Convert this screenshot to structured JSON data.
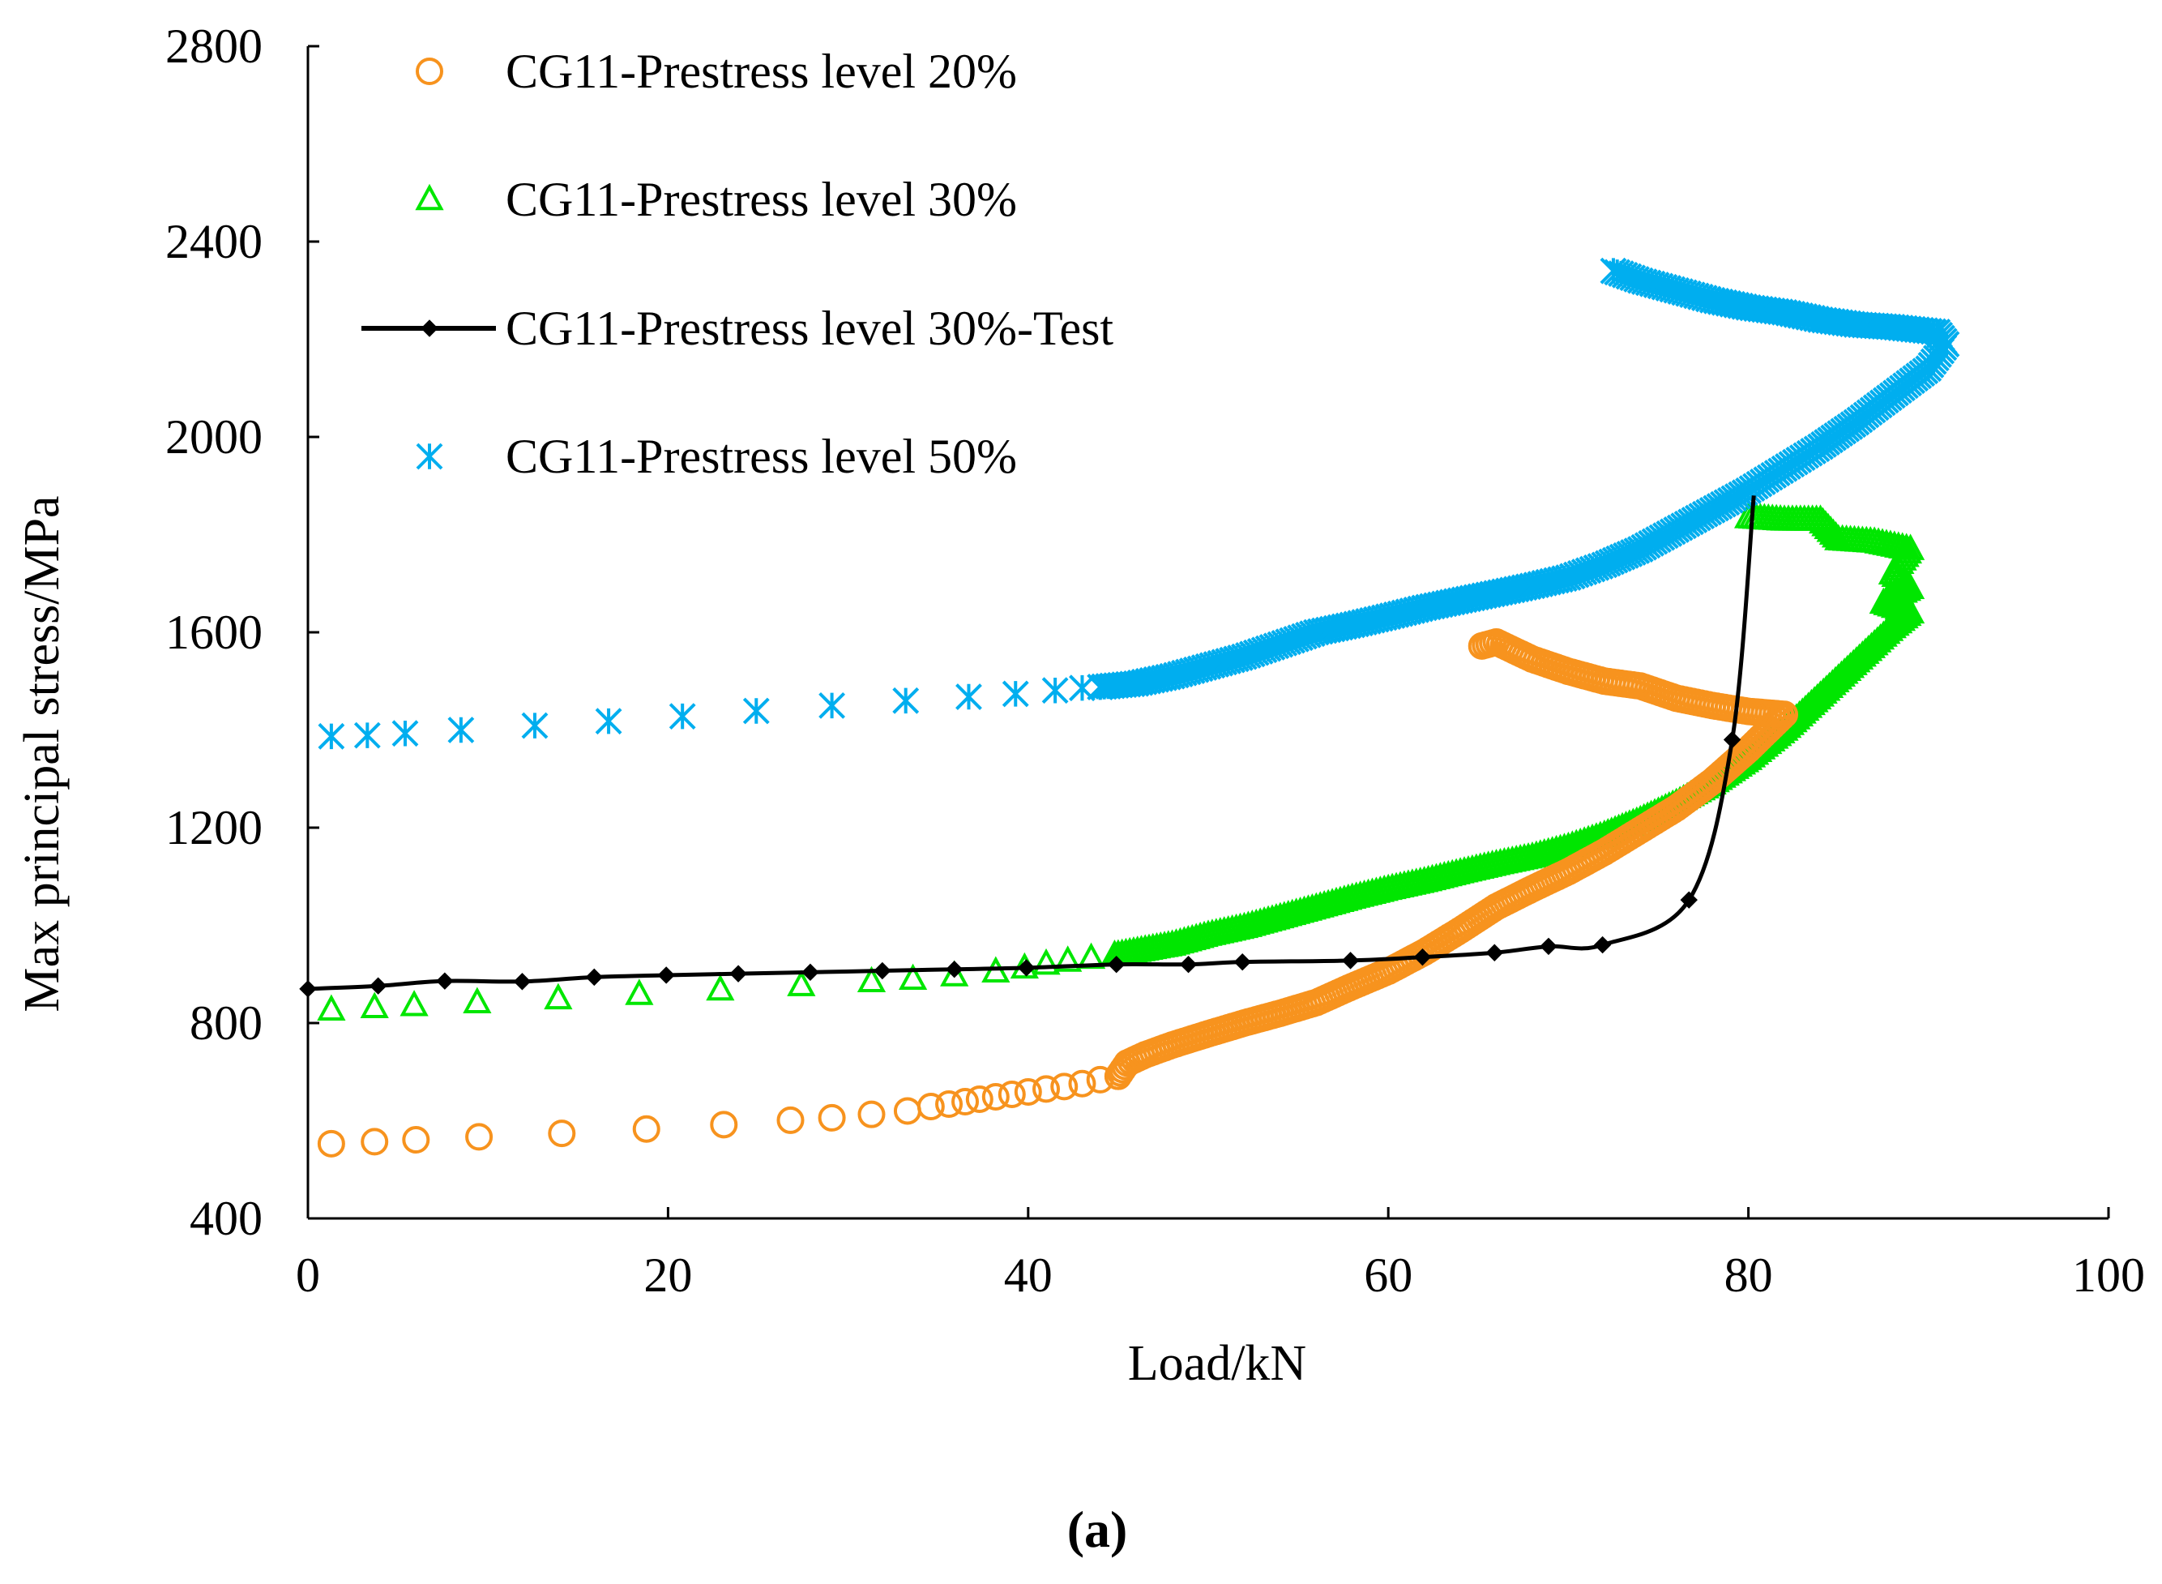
{
  "caption": "(a)",
  "colors": {
    "orange": "#F7931E",
    "green": "#00E600",
    "black": "#000000",
    "blue": "#00AEEF"
  },
  "chart_data": {
    "type": "scatter",
    "xlabel": "Load/kN",
    "ylabel": "Max principal stress/MPa",
    "xlim": [
      0,
      100
    ],
    "ylim": [
      400,
      2800
    ],
    "xticks": [
      "0",
      "20",
      "40",
      "60",
      "80",
      "100"
    ],
    "yticks": [
      "400",
      "800",
      "1200",
      "1600",
      "2000",
      "2400",
      "2800"
    ],
    "legend_position": "top-left",
    "series": [
      {
        "name": "CG11-Prestress level 20%",
        "marker": "circle",
        "color": "#F7931E",
        "line": false,
        "sparse_points": [
          [
            1.3,
            553
          ],
          [
            3.7,
            557
          ],
          [
            6.0,
            561
          ],
          [
            9.5,
            567
          ],
          [
            14.1,
            574
          ],
          [
            18.8,
            583
          ],
          [
            23.1,
            592
          ],
          [
            26.8,
            601
          ],
          [
            29.1,
            606
          ],
          [
            31.3,
            613
          ],
          [
            33.3,
            620
          ],
          [
            34.6,
            629
          ],
          [
            35.6,
            634
          ],
          [
            36.5,
            639
          ],
          [
            37.3,
            644
          ],
          [
            38.2,
            649
          ],
          [
            39.1,
            654
          ],
          [
            40.0,
            659
          ],
          [
            41.0,
            665
          ],
          [
            42.0,
            670
          ],
          [
            43.0,
            676
          ],
          [
            44.0,
            684
          ],
          [
            45.0,
            691
          ]
        ],
        "dense_path": [
          [
            45,
            691
          ],
          [
            45.5,
            718
          ],
          [
            46.5,
            735
          ],
          [
            48,
            755
          ],
          [
            50,
            778
          ],
          [
            52,
            800
          ],
          [
            54,
            820
          ],
          [
            56,
            842
          ],
          [
            58,
            875
          ],
          [
            60,
            906
          ],
          [
            62,
            945
          ],
          [
            64,
            990
          ],
          [
            66,
            1038
          ],
          [
            68,
            1075
          ],
          [
            70,
            1110
          ],
          [
            72,
            1150
          ],
          [
            74,
            1195
          ],
          [
            76,
            1240
          ],
          [
            78,
            1295
          ],
          [
            80,
            1360
          ],
          [
            82,
            1432
          ],
          [
            80,
            1438
          ],
          [
            78,
            1450
          ],
          [
            76,
            1465
          ],
          [
            74,
            1490
          ],
          [
            72,
            1500
          ],
          [
            70,
            1520
          ],
          [
            68,
            1545
          ],
          [
            66,
            1580
          ],
          [
            65.2,
            1572
          ]
        ]
      },
      {
        "name": "CG11-Prestress level 30%",
        "marker": "triangle",
        "color": "#00E600",
        "line": false,
        "sparse_points": [
          [
            1.3,
            827
          ],
          [
            3.7,
            832
          ],
          [
            5.9,
            836
          ],
          [
            9.4,
            842
          ],
          [
            13.9,
            850
          ],
          [
            18.4,
            859
          ],
          [
            22.9,
            868
          ],
          [
            27.4,
            877
          ],
          [
            31.3,
            885
          ],
          [
            33.6,
            890
          ],
          [
            35.9,
            897
          ],
          [
            38.2,
            905
          ],
          [
            39.8,
            913
          ],
          [
            41.0,
            921
          ],
          [
            42.2,
            927
          ],
          [
            43.5,
            933
          ],
          [
            44.8,
            939
          ]
        ],
        "dense_path": [
          [
            45,
            940
          ],
          [
            48,
            960
          ],
          [
            50,
            980
          ],
          [
            52,
            996
          ],
          [
            54,
            1016
          ],
          [
            56,
            1036
          ],
          [
            58,
            1056
          ],
          [
            60,
            1074
          ],
          [
            62,
            1090
          ],
          [
            64,
            1108
          ],
          [
            66,
            1125
          ],
          [
            68,
            1140
          ],
          [
            70,
            1160
          ],
          [
            72,
            1185
          ],
          [
            74,
            1215
          ],
          [
            76,
            1250
          ],
          [
            78,
            1290
          ],
          [
            80,
            1340
          ],
          [
            82,
            1400
          ],
          [
            84,
            1470
          ],
          [
            86,
            1540
          ],
          [
            88,
            1610
          ],
          [
            89,
            1640
          ],
          [
            87.5,
            1660
          ],
          [
            89,
            1690
          ],
          [
            88,
            1720
          ],
          [
            89,
            1770
          ],
          [
            87,
            1785
          ],
          [
            85,
            1790
          ],
          [
            84,
            1830
          ],
          [
            82,
            1830
          ],
          [
            80,
            1835
          ]
        ]
      },
      {
        "name": "CG11-Prestress level 30%-Test",
        "marker": "diamond",
        "color": "#000000",
        "line": true,
        "points": [
          [
            0,
            870
          ],
          [
            3.9,
            876
          ],
          [
            7.6,
            886
          ],
          [
            11.9,
            885
          ],
          [
            15.9,
            894
          ],
          [
            19.9,
            898
          ],
          [
            23.9,
            901
          ],
          [
            27.9,
            904
          ],
          [
            31.9,
            907
          ],
          [
            35.9,
            910
          ],
          [
            39.9,
            913
          ],
          [
            44.9,
            920
          ],
          [
            48.9,
            920
          ],
          [
            51.9,
            925
          ],
          [
            57.9,
            928
          ],
          [
            61.9,
            935
          ],
          [
            65.9,
            944
          ],
          [
            68.9,
            957
          ],
          [
            71.9,
            960
          ],
          [
            76.7,
            1052
          ],
          [
            79.1,
            1380
          ],
          [
            80.3,
            1880
          ]
        ]
      },
      {
        "name": "CG11-Prestress level 50%",
        "marker": "asterisk",
        "color": "#00AEEF",
        "line": false,
        "sparse_points": [
          [
            1.3,
            1387
          ],
          [
            3.3,
            1389
          ],
          [
            5.4,
            1393
          ],
          [
            8.5,
            1400
          ],
          [
            12.6,
            1409
          ],
          [
            16.7,
            1418
          ],
          [
            20.8,
            1428
          ],
          [
            24.9,
            1439
          ],
          [
            29.1,
            1450
          ],
          [
            33.2,
            1460
          ],
          [
            36.7,
            1468
          ],
          [
            39.3,
            1474
          ],
          [
            41.5,
            1481
          ],
          [
            43.0,
            1486
          ],
          [
            44.0,
            1488
          ]
        ],
        "dense_path": [
          [
            44,
            1488
          ],
          [
            46,
            1495
          ],
          [
            48,
            1510
          ],
          [
            50,
            1530
          ],
          [
            52,
            1550
          ],
          [
            54,
            1575
          ],
          [
            56,
            1600
          ],
          [
            58,
            1615
          ],
          [
            60,
            1632
          ],
          [
            62,
            1650
          ],
          [
            64,
            1665
          ],
          [
            66,
            1680
          ],
          [
            68,
            1695
          ],
          [
            70,
            1712
          ],
          [
            72,
            1738
          ],
          [
            74,
            1770
          ],
          [
            76,
            1810
          ],
          [
            78,
            1850
          ],
          [
            80,
            1890
          ],
          [
            82,
            1935
          ],
          [
            84,
            1980
          ],
          [
            86,
            2030
          ],
          [
            88,
            2085
          ],
          [
            90,
            2140
          ],
          [
            91,
            2190
          ],
          [
            90.5,
            2215
          ],
          [
            88,
            2225
          ],
          [
            86,
            2230
          ],
          [
            84,
            2240
          ],
          [
            82,
            2255
          ],
          [
            80,
            2265
          ],
          [
            78,
            2280
          ],
          [
            76,
            2300
          ],
          [
            74,
            2320
          ],
          [
            72.5,
            2340
          ]
        ]
      }
    ]
  }
}
